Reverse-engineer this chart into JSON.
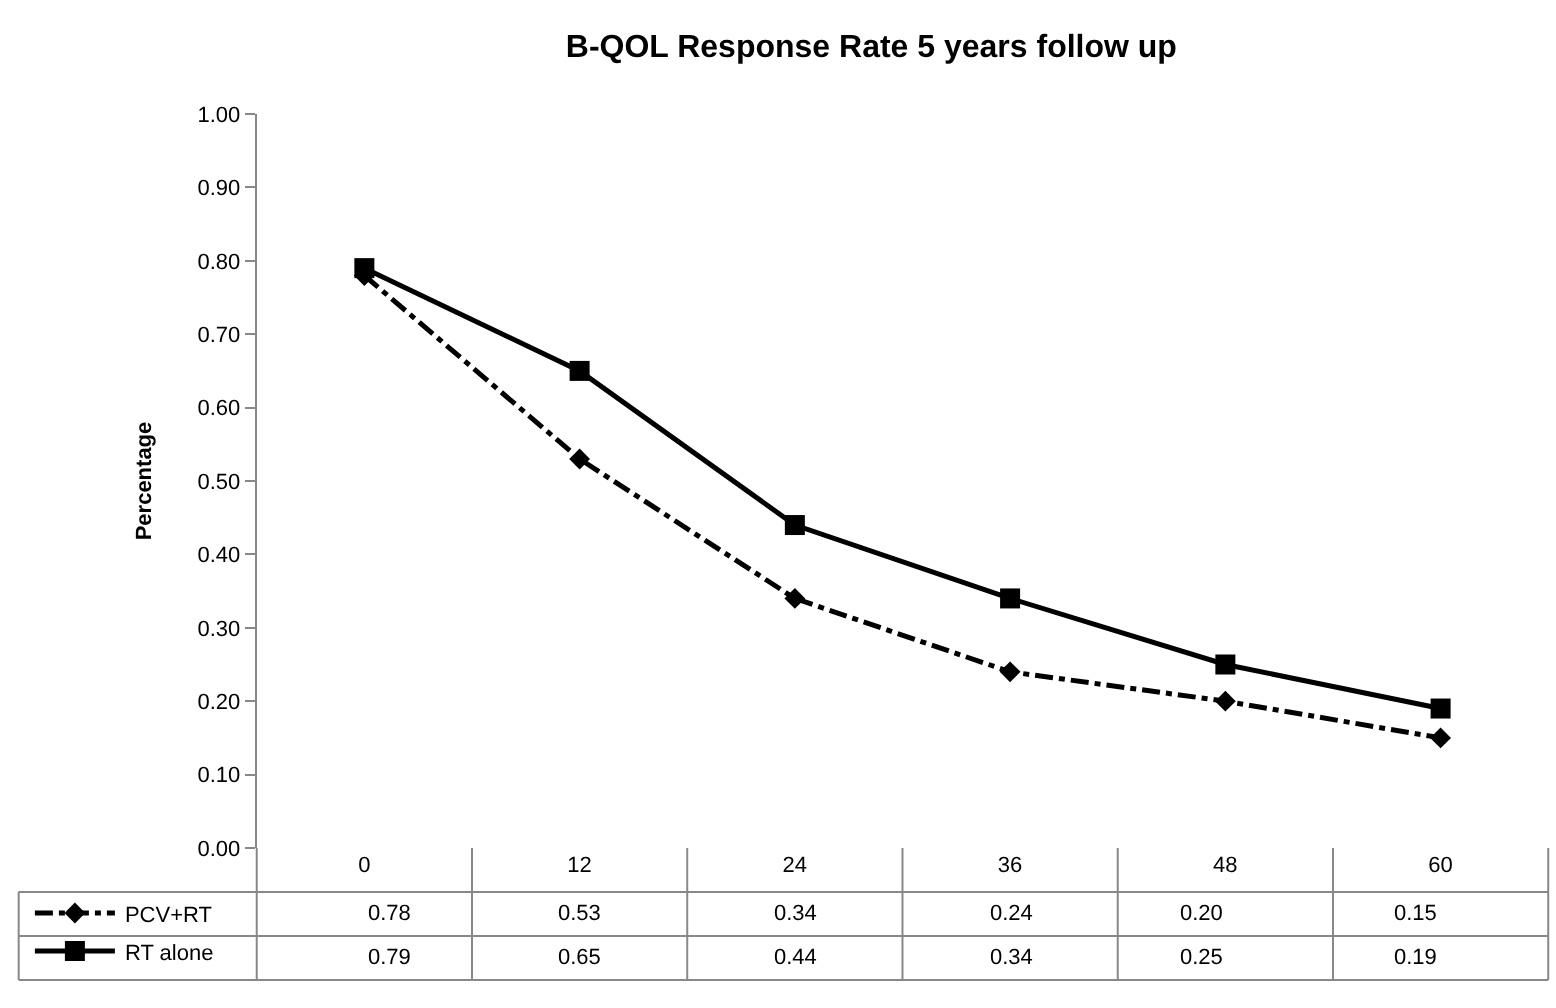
{
  "chart_data": {
    "type": "line",
    "title": "B-QOL Response Rate 5 years follow up",
    "ylabel": "Percentage",
    "categories": [
      "0",
      "12",
      "24",
      "36",
      "48",
      "60"
    ],
    "series": [
      {
        "name": "PCV+RT",
        "color": "#000000",
        "marker": "diamond",
        "line_style": "dashdot",
        "values": [
          0.78,
          0.53,
          0.34,
          0.24,
          0.2,
          0.15
        ],
        "value_labels": [
          "0.78",
          "0.53",
          "0.34",
          "0.24",
          "0.20",
          "0.15"
        ]
      },
      {
        "name": "RT alone",
        "color": "#000000",
        "marker": "square",
        "line_style": "solid",
        "values": [
          0.79,
          0.65,
          0.44,
          0.34,
          0.25,
          0.19
        ],
        "value_labels": [
          "0.79",
          "0.65",
          "0.44",
          "0.34",
          "0.25",
          "0.19"
        ]
      }
    ],
    "ylim": [
      0,
      1
    ],
    "yticks": [
      {
        "value": 0,
        "label": "0.00"
      },
      {
        "value": 0.1,
        "label": "0.10"
      },
      {
        "value": 0.2,
        "label": "0.20"
      },
      {
        "value": 0.3,
        "label": "0.30"
      },
      {
        "value": 0.4,
        "label": "0.40"
      },
      {
        "value": 0.5,
        "label": "0.50"
      },
      {
        "value": 0.6,
        "label": "0.60"
      },
      {
        "value": 0.7,
        "label": "0.70"
      },
      {
        "value": 0.8,
        "label": "0.80"
      },
      {
        "value": 0.9,
        "label": "0.90"
      },
      {
        "value": 1.0,
        "label": "1.00"
      }
    ],
    "grid": false,
    "legend": "bottom"
  }
}
